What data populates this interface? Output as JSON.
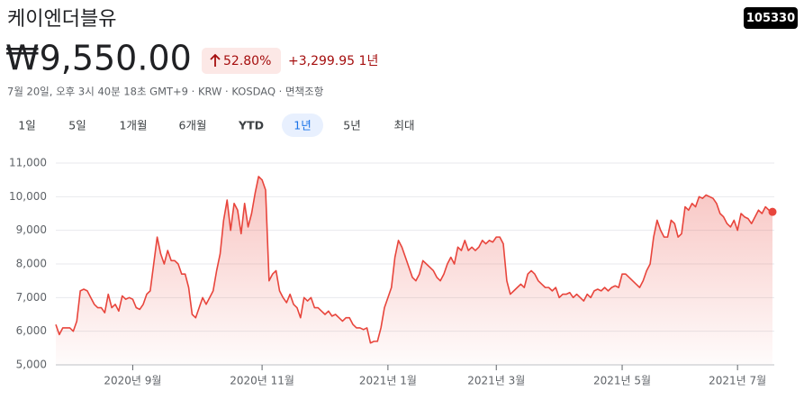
{
  "header": {
    "title": "케이엔더블유",
    "ticker": "105330",
    "price": "₩9,550.00",
    "change_pct": "52.80%",
    "change_abs": "+3,299.95",
    "period": "1년",
    "note": "7월 20일, 오후 3시 40분 18초 GMT+9 · KRW · KOSDAQ · 면책조항"
  },
  "tabs": [
    "1일",
    "5일",
    "1개월",
    "6개월",
    "YTD",
    "1년",
    "5년",
    "최대"
  ],
  "selected_tab": "1년",
  "chart_data": {
    "type": "line",
    "fill": true,
    "color": "#e8453c",
    "last_point_marker": true,
    "grid": true,
    "values": [
      6200,
      5900,
      6100,
      6100,
      6100,
      6000,
      6300,
      7200,
      7250,
      7200,
      7000,
      6800,
      6700,
      6700,
      6550,
      7100,
      6700,
      6800,
      6600,
      7050,
      6950,
      7000,
      6950,
      6700,
      6650,
      6800,
      7100,
      7200,
      8000,
      8800,
      8300,
      8000,
      8400,
      8100,
      8100,
      8000,
      7700,
      7700,
      7300,
      6500,
      6400,
      6700,
      7000,
      6800,
      7000,
      7200,
      7800,
      8300,
      9300,
      9900,
      9000,
      9800,
      9600,
      8900,
      9800,
      9100,
      9500,
      10100,
      10600,
      10500,
      10200,
      7500,
      7700,
      7800,
      7200,
      7000,
      6850,
      7100,
      6800,
      6700,
      6400,
      7000,
      6900,
      7000,
      6700,
      6700,
      6600,
      6500,
      6600,
      6450,
      6500,
      6400,
      6300,
      6400,
      6400,
      6200,
      6100,
      6100,
      6050,
      6100,
      5650,
      5700,
      5700,
      6100,
      6700,
      7000,
      7300,
      8200,
      8700,
      8500,
      8200,
      7900,
      7600,
      7500,
      7700,
      8100,
      8000,
      7900,
      7800,
      7600,
      7500,
      7700,
      8000,
      8200,
      8000,
      8500,
      8400,
      8700,
      8400,
      8500,
      8400,
      8500,
      8700,
      8600,
      8700,
      8650,
      8800,
      8800,
      8600,
      7500,
      7100,
      7200,
      7300,
      7400,
      7300,
      7700,
      7800,
      7700,
      7500,
      7400,
      7300,
      7300,
      7200,
      7300,
      7000,
      7100,
      7100,
      7150,
      7000,
      7100,
      7000,
      6900,
      7100,
      7000,
      7200,
      7250,
      7200,
      7300,
      7200,
      7300,
      7350,
      7300,
      7700,
      7700,
      7600,
      7500,
      7400,
      7300,
      7500,
      7800,
      8000,
      8800,
      9300,
      9000,
      8800,
      8800,
      9300,
      9200,
      8800,
      8900,
      9700,
      9600,
      9800,
      9700,
      10000,
      9950,
      10050,
      10000,
      9950,
      9800,
      9500,
      9400,
      9200,
      9100,
      9300,
      9000,
      9500,
      9400,
      9350,
      9200,
      9400,
      9600,
      9500,
      9700,
      9600,
      9550
    ],
    "xlim": [
      0,
      205
    ],
    "xticks": [
      {
        "value": 22,
        "label": "2020년 9월"
      },
      {
        "value": 59,
        "label": "2020년 11월"
      },
      {
        "value": 95,
        "label": "2021년 1월"
      },
      {
        "value": 126,
        "label": "2021년 3월"
      },
      {
        "value": 162,
        "label": "2021년 5월"
      },
      {
        "value": 195,
        "label": "2021년 7월"
      }
    ],
    "ylim": [
      5000,
      11000
    ],
    "yticks": [
      {
        "value": 5000,
        "label": "5,000"
      },
      {
        "value": 6000,
        "label": "6,000"
      },
      {
        "value": 7000,
        "label": "7,000"
      },
      {
        "value": 8000,
        "label": "8,000"
      },
      {
        "value": 9000,
        "label": "9,000"
      },
      {
        "value": 10000,
        "label": "10,000"
      },
      {
        "value": 11000,
        "label": "11,000"
      }
    ]
  }
}
